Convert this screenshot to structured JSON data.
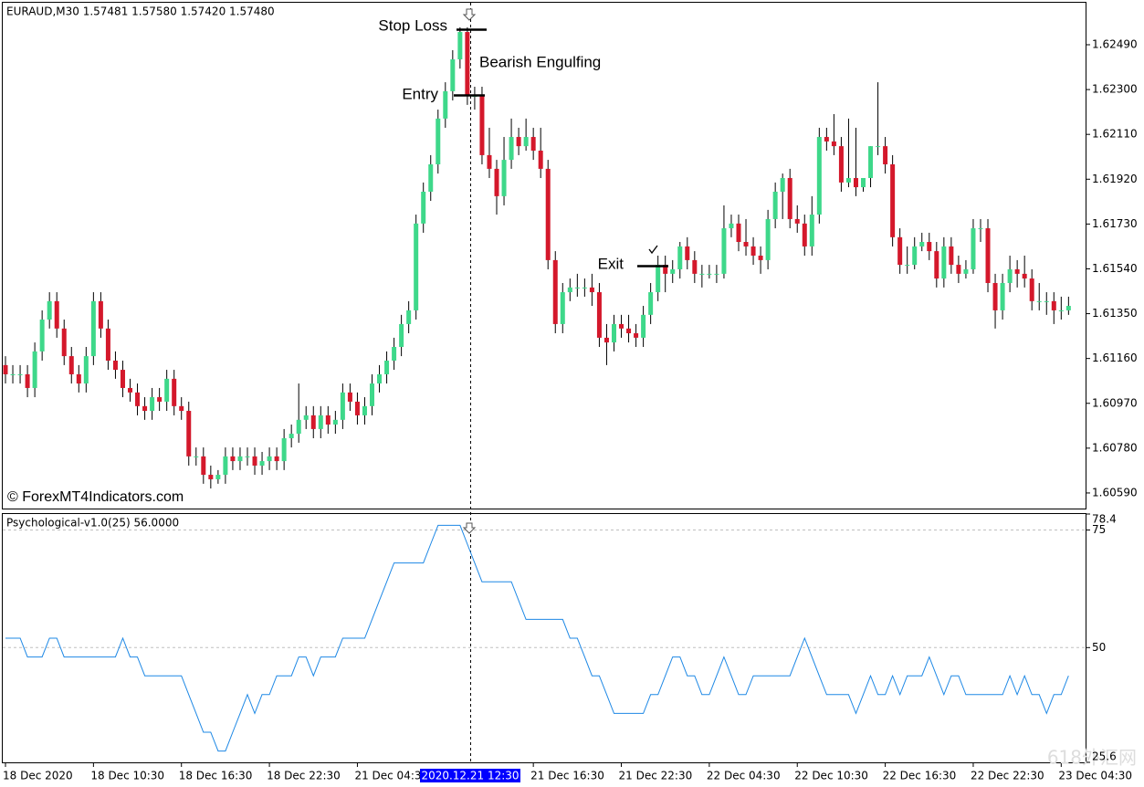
{
  "watermark": "618外汇网",
  "chart_data": [
    {
      "type": "candlestick",
      "title": "EURAUD,M30  1.57481 1.57580 1.57420 1.57480",
      "annotations": [
        "Stop Loss",
        "Bearish Engulfing",
        "Entry",
        "Exit",
        "© ForexMT4Indicators.com"
      ],
      "up_color": "#3ed88a",
      "down_color": "#d4182b",
      "ylim": [
        1.60524,
        1.62668
      ],
      "yticks": [
        {
          "value": 1.6249,
          "label": "1.62490"
        },
        {
          "value": 1.623,
          "label": "1.62300"
        },
        {
          "value": 1.6211,
          "label": "1.62110"
        },
        {
          "value": 1.6192,
          "label": "1.61920"
        },
        {
          "value": 1.6173,
          "label": "1.61730"
        },
        {
          "value": 1.6154,
          "label": "1.61540"
        },
        {
          "value": 1.6135,
          "label": "1.61350"
        },
        {
          "value": 1.6116,
          "label": "1.61160"
        },
        {
          "value": 1.6097,
          "label": "1.60970"
        },
        {
          "value": 1.6078,
          "label": "1.60780"
        },
        {
          "value": 1.6059,
          "label": "1.60590"
        }
      ],
      "categories": [
        "18 Dec 2020",
        null,
        null,
        null,
        null,
        null,
        null,
        null,
        null,
        null,
        null,
        null,
        "18 Dec 10:30",
        null,
        null,
        null,
        null,
        null,
        null,
        null,
        null,
        null,
        null,
        null,
        "18 Dec 16:30",
        null,
        null,
        null,
        null,
        null,
        null,
        null,
        null,
        null,
        null,
        null,
        "18 Dec 22:30",
        null,
        null,
        null,
        null,
        null,
        null,
        null,
        null,
        null,
        null,
        null,
        "21 Dec 04:30",
        null,
        null,
        null,
        null,
        null,
        null,
        null,
        null,
        null,
        null,
        null,
        null,
        null,
        null,
        "2020.12.21 12:30",
        null,
        null,
        null,
        null,
        null,
        null,
        null,
        null,
        "21 Dec 16:30",
        null,
        null,
        null,
        null,
        null,
        null,
        null,
        null,
        null,
        null,
        null,
        "21 Dec 22:30",
        null,
        null,
        null,
        null,
        null,
        null,
        null,
        null,
        null,
        null,
        null,
        "22 Dec 04:30",
        null,
        null,
        null,
        null,
        null,
        null,
        null,
        null,
        null,
        null,
        null,
        "22 Dec 10:30",
        null,
        null,
        null,
        null,
        null,
        null,
        null,
        null,
        null,
        null,
        null,
        "22 Dec 16:30",
        null,
        null,
        null,
        null,
        null,
        null,
        null,
        null,
        null,
        null,
        null,
        "22 Dec 22:30",
        null,
        null,
        null,
        null,
        null,
        null,
        null,
        null,
        null,
        null,
        null,
        "23 Dec 04:30",
        null
      ],
      "values": [
        [
          1.61132,
          1.6117,
          1.61054,
          1.61093
        ],
        [
          1.61093,
          1.61132,
          1.61054,
          1.61093
        ],
        [
          1.61093,
          1.61132,
          1.61054,
          1.61093
        ],
        [
          1.61093,
          1.61132,
          1.60996,
          1.61035
        ],
        [
          1.61035,
          1.61228,
          1.60996,
          1.6119
        ],
        [
          1.6119,
          1.61364,
          1.61151,
          1.61325
        ],
        [
          1.61325,
          1.61441,
          1.61287,
          1.61403
        ],
        [
          1.61403,
          1.61441,
          1.61248,
          1.61287
        ],
        [
          1.61287,
          1.61325,
          1.61132,
          1.6117
        ],
        [
          1.6117,
          1.61209,
          1.61054,
          1.61093
        ],
        [
          1.61093,
          1.61132,
          1.61016,
          1.61054
        ],
        [
          1.61054,
          1.61209,
          1.61016,
          1.6117
        ],
        [
          1.6117,
          1.61441,
          1.61132,
          1.61403
        ],
        [
          1.61403,
          1.61441,
          1.61248,
          1.61287
        ],
        [
          1.61287,
          1.61325,
          1.61112,
          1.61151
        ],
        [
          1.61151,
          1.6119,
          1.61074,
          1.61112
        ],
        [
          1.61112,
          1.61151,
          1.60996,
          1.61035
        ],
        [
          1.61035,
          1.61074,
          1.60977,
          1.61016
        ],
        [
          1.61016,
          1.61054,
          1.60919,
          1.60958
        ],
        [
          1.60958,
          1.60996,
          1.609,
          1.60938
        ],
        [
          1.60938,
          1.61035,
          1.609,
          1.60996
        ],
        [
          1.60996,
          1.61035,
          1.60938,
          1.60977
        ],
        [
          1.60977,
          1.61112,
          1.60938,
          1.61074
        ],
        [
          1.61074,
          1.61112,
          1.60919,
          1.60958
        ],
        [
          1.60958,
          1.60996,
          1.609,
          1.60938
        ],
        [
          1.60938,
          1.60977,
          1.60706,
          1.60745
        ],
        [
          1.60745,
          1.60783,
          1.60706,
          1.60745
        ],
        [
          1.60745,
          1.60783,
          1.60629,
          1.60667
        ],
        [
          1.60667,
          1.60706,
          1.60609,
          1.60648
        ],
        [
          1.60648,
          1.60687,
          1.60629,
          1.60667
        ],
        [
          1.60667,
          1.60783,
          1.60629,
          1.60745
        ],
        [
          1.60745,
          1.60783,
          1.60687,
          1.60725
        ],
        [
          1.60725,
          1.60783,
          1.60687,
          1.60745
        ],
        [
          1.60745,
          1.60783,
          1.60706,
          1.60745
        ],
        [
          1.60745,
          1.60783,
          1.60667,
          1.60706
        ],
        [
          1.60706,
          1.60764,
          1.60667,
          1.60725
        ],
        [
          1.60725,
          1.60783,
          1.60687,
          1.60745
        ],
        [
          1.60745,
          1.60783,
          1.60687,
          1.60725
        ],
        [
          1.60725,
          1.60861,
          1.60687,
          1.60822
        ],
        [
          1.60822,
          1.6088,
          1.60783,
          1.60841
        ],
        [
          1.60841,
          1.61054,
          1.60803,
          1.609
        ],
        [
          1.609,
          1.60958,
          1.60861,
          1.60919
        ],
        [
          1.60919,
          1.60958,
          1.60822,
          1.60861
        ],
        [
          1.60861,
          1.60958,
          1.60822,
          1.60919
        ],
        [
          1.60919,
          1.60958,
          1.60841,
          1.6088
        ],
        [
          1.6088,
          1.60938,
          1.60841,
          1.609
        ],
        [
          1.609,
          1.61054,
          1.60861,
          1.61016
        ],
        [
          1.61016,
          1.61054,
          1.60938,
          1.60977
        ],
        [
          1.60977,
          1.61016,
          1.6088,
          1.60919
        ],
        [
          1.60919,
          1.60996,
          1.6088,
          1.60958
        ],
        [
          1.60958,
          1.61093,
          1.60919,
          1.61054
        ],
        [
          1.61054,
          1.61132,
          1.61016,
          1.61093
        ],
        [
          1.61093,
          1.6119,
          1.61054,
          1.61151
        ],
        [
          1.61151,
          1.61248,
          1.61112,
          1.61209
        ],
        [
          1.61209,
          1.61345,
          1.6117,
          1.61306
        ],
        [
          1.61306,
          1.61403,
          1.61267,
          1.61364
        ],
        [
          1.61364,
          1.6177,
          1.61325,
          1.61732
        ],
        [
          1.61732,
          1.61906,
          1.61693,
          1.61867
        ],
        [
          1.61867,
          1.62022,
          1.61828,
          1.61983
        ],
        [
          1.61983,
          1.62215,
          1.61944,
          1.62177
        ],
        [
          1.62177,
          1.62331,
          1.62138,
          1.62293
        ],
        [
          1.62293,
          1.62467,
          1.62254,
          1.62428
        ],
        [
          1.62428,
          1.62564,
          1.62389,
          1.62544
        ],
        [
          1.62544,
          1.62564,
          1.62235,
          1.62273
        ],
        [
          1.62273,
          1.62312,
          1.62215,
          1.62273
        ],
        [
          1.62273,
          1.62312,
          1.61983,
          1.62022
        ],
        [
          1.62022,
          1.62138,
          1.61925,
          1.61964
        ],
        [
          1.61964,
          1.62002,
          1.6177,
          1.61848
        ],
        [
          1.61848,
          1.62099,
          1.61809,
          1.62002
        ],
        [
          1.62002,
          1.62177,
          1.61964,
          1.62099
        ],
        [
          1.62099,
          1.62138,
          1.62022,
          1.6206
        ],
        [
          1.6206,
          1.62177,
          1.62041,
          1.62099
        ],
        [
          1.62099,
          1.62138,
          1.62002,
          1.62041
        ],
        [
          1.62041,
          1.62138,
          1.61925,
          1.61964
        ],
        [
          1.61964,
          1.62002,
          1.61538,
          1.61577
        ],
        [
          1.61577,
          1.61615,
          1.61267,
          1.61306
        ],
        [
          1.61306,
          1.6148,
          1.61267,
          1.61441
        ],
        [
          1.61441,
          1.61499,
          1.61403,
          1.61461
        ],
        [
          1.61461,
          1.61519,
          1.61422,
          1.61461
        ],
        [
          1.61461,
          1.61499,
          1.61422,
          1.61461
        ],
        [
          1.61461,
          1.61519,
          1.61383,
          1.61441
        ],
        [
          1.61441,
          1.6148,
          1.61209,
          1.61248
        ],
        [
          1.61248,
          1.61306,
          1.61132,
          1.61228
        ],
        [
          1.61228,
          1.61345,
          1.6119,
          1.61306
        ],
        [
          1.61306,
          1.61345,
          1.61248,
          1.61287
        ],
        [
          1.61287,
          1.61345,
          1.61228,
          1.61267
        ],
        [
          1.61267,
          1.61306,
          1.61209,
          1.61248
        ],
        [
          1.61248,
          1.61383,
          1.61209,
          1.61345
        ],
        [
          1.61345,
          1.6148,
          1.61306,
          1.61441
        ],
        [
          1.61441,
          1.61596,
          1.61403,
          1.61557
        ],
        [
          1.61557,
          1.61596,
          1.61441,
          1.61519
        ],
        [
          1.61519,
          1.61577,
          1.6148,
          1.61538
        ],
        [
          1.61538,
          1.61654,
          1.61499,
          1.61635
        ],
        [
          1.61635,
          1.61674,
          1.61538,
          1.61577
        ],
        [
          1.61577,
          1.61615,
          1.6148,
          1.61519
        ],
        [
          1.61519,
          1.61557,
          1.61461,
          1.61519
        ],
        [
          1.61519,
          1.61557,
          1.61499,
          1.61519
        ],
        [
          1.61519,
          1.61557,
          1.6148,
          1.61519
        ],
        [
          1.61519,
          1.61809,
          1.61499,
          1.61712
        ],
        [
          1.61712,
          1.6177,
          1.61674,
          1.61732
        ],
        [
          1.61732,
          1.6177,
          1.61615,
          1.61654
        ],
        [
          1.61654,
          1.61751,
          1.61596,
          1.61635
        ],
        [
          1.61635,
          1.61674,
          1.61557,
          1.61596
        ],
        [
          1.61596,
          1.61635,
          1.61519,
          1.61577
        ],
        [
          1.61577,
          1.6179,
          1.61538,
          1.61751
        ],
        [
          1.61751,
          1.61906,
          1.61712,
          1.61867
        ],
        [
          1.61867,
          1.61944,
          1.61751,
          1.61925
        ],
        [
          1.61925,
          1.61964,
          1.61712,
          1.61751
        ],
        [
          1.61751,
          1.61809,
          1.61693,
          1.61732
        ],
        [
          1.61732,
          1.6177,
          1.61596,
          1.61635
        ],
        [
          1.61635,
          1.61848,
          1.61596,
          1.6177
        ],
        [
          1.6177,
          1.62138,
          1.61732,
          1.62099
        ],
        [
          1.62099,
          1.62138,
          1.62041,
          1.6208
        ],
        [
          1.6208,
          1.62196,
          1.62022,
          1.6206
        ],
        [
          1.6206,
          1.62099,
          1.61867,
          1.61906
        ],
        [
          1.61906,
          1.62177,
          1.61886,
          1.61925
        ],
        [
          1.61925,
          1.62138,
          1.61848,
          1.61886
        ],
        [
          1.61886,
          1.61925,
          1.61867,
          1.61925
        ],
        [
          1.61925,
          1.6206,
          1.61886,
          1.6206
        ],
        [
          1.6206,
          1.62331,
          1.62022,
          1.6206
        ],
        [
          1.6206,
          1.62099,
          1.61944,
          1.61983
        ],
        [
          1.61983,
          1.62022,
          1.61635,
          1.61674
        ],
        [
          1.61674,
          1.61712,
          1.61519,
          1.61557
        ],
        [
          1.61557,
          1.61635,
          1.61519,
          1.61557
        ],
        [
          1.61557,
          1.61674,
          1.61538,
          1.61635
        ],
        [
          1.61635,
          1.61693,
          1.61615,
          1.61654
        ],
        [
          1.61654,
          1.61693,
          1.61577,
          1.61615
        ],
        [
          1.61615,
          1.61654,
          1.61461,
          1.61499
        ],
        [
          1.61499,
          1.61674,
          1.61461,
          1.61635
        ],
        [
          1.61635,
          1.61674,
          1.61519,
          1.61557
        ],
        [
          1.61557,
          1.61596,
          1.6148,
          1.61519
        ],
        [
          1.61519,
          1.61577,
          1.61499,
          1.61538
        ],
        [
          1.61538,
          1.61751,
          1.61519,
          1.61712
        ],
        [
          1.61712,
          1.61751,
          1.61654,
          1.61712
        ],
        [
          1.61712,
          1.61751,
          1.61441,
          1.6148
        ],
        [
          1.6148,
          1.61519,
          1.61287,
          1.61364
        ],
        [
          1.61364,
          1.61519,
          1.61325,
          1.6148
        ],
        [
          1.6148,
          1.61596,
          1.61441,
          1.61538
        ],
        [
          1.61538,
          1.61577,
          1.61461,
          1.61519
        ],
        [
          1.61519,
          1.61596,
          1.61461,
          1.61499
        ],
        [
          1.61499,
          1.61538,
          1.61364,
          1.61403
        ],
        [
          1.61403,
          1.6148,
          1.61364,
          1.61403
        ],
        [
          1.61403,
          1.61441,
          1.61345,
          1.61403
        ],
        [
          1.61403,
          1.61441,
          1.61306,
          1.61364
        ],
        [
          1.61364,
          1.61422,
          1.61325,
          1.61364
        ],
        [
          1.61364,
          1.61422,
          1.61345,
          1.61383
        ]
      ]
    },
    {
      "type": "line",
      "title": "Psychological-v1.0(25) 56.0000",
      "color": "#1e88e5",
      "ylim": [
        25.6,
        78.4
      ],
      "yticks": [
        78.4,
        75,
        50,
        25.6
      ],
      "values": [
        52,
        52,
        52,
        48,
        48,
        48,
        52,
        52,
        48,
        48,
        48,
        48,
        48,
        48,
        48,
        48,
        52,
        48,
        48,
        44,
        44,
        44,
        44,
        44,
        44,
        40,
        36,
        32,
        32,
        28,
        28,
        32,
        36,
        40,
        36,
        40,
        40,
        44,
        44,
        44,
        48,
        48,
        44,
        48,
        48,
        48,
        52,
        52,
        52,
        52,
        56,
        60,
        64,
        68,
        68,
        68,
        68,
        68,
        72,
        76,
        76,
        76,
        76,
        72,
        68,
        64,
        64,
        64,
        64,
        64,
        60,
        56,
        56,
        56,
        56,
        56,
        56,
        52,
        52,
        48,
        44,
        44,
        40,
        36,
        36,
        36,
        36,
        36,
        40,
        40,
        44,
        48,
        48,
        44,
        44,
        40,
        40,
        44,
        48,
        44,
        40,
        40,
        44,
        44,
        44,
        44,
        44,
        44,
        48,
        52,
        48,
        44,
        40,
        40,
        40,
        40,
        36,
        40,
        44,
        40,
        40,
        44,
        40,
        44,
        44,
        44,
        48,
        44,
        40,
        44,
        44,
        40,
        40,
        40,
        40,
        40,
        40,
        44,
        40,
        44,
        40,
        40,
        36,
        40,
        40,
        44
      ]
    }
  ]
}
